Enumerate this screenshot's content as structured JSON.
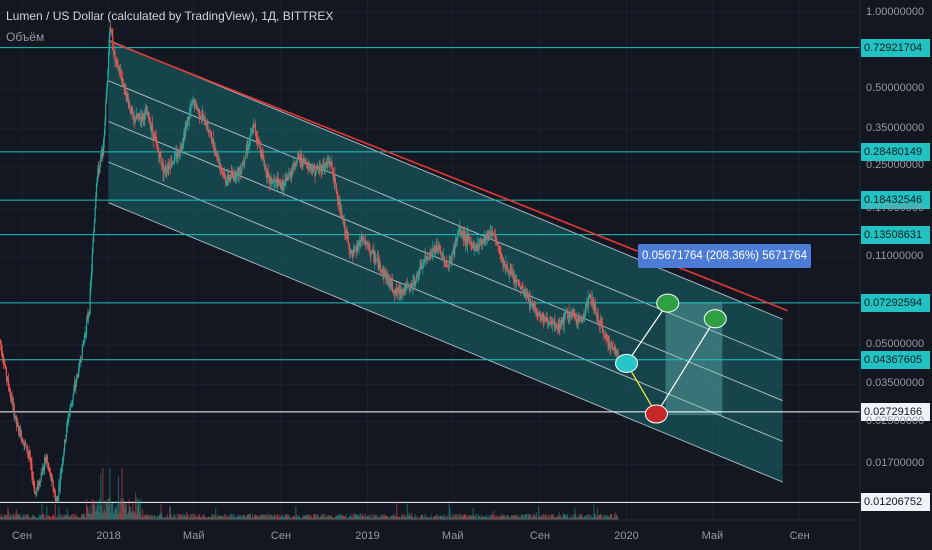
{
  "header": {
    "title": "Lumen / US Dollar (calculated by TradingView), 1Д, BITTREX",
    "volume_label": "Объём"
  },
  "measure_label": "0.05671764 (208.36%) 5671764",
  "colors": {
    "background": "#131722",
    "up": "#26a69a",
    "down": "#ef5350",
    "channel_fill": "#1e8f8f",
    "level_line": "#22c2c2",
    "white_line": "#ffffff",
    "red_trend": "#e53935",
    "measure_box": "#4c7cd6"
  },
  "chart_data": {
    "type": "candlestick",
    "title": "Lumen / US Dollar (calculated by TradingView), 1Д, BITTREX",
    "scale": "log",
    "ylim": [
      0.0103,
      1.12
    ],
    "xlim": [
      "2017-08-01",
      "2020-11-25"
    ],
    "y_ticks": [
      1.0,
      0.5,
      0.35,
      0.25,
      0.17,
      0.11,
      0.05,
      0.035,
      0.025,
      0.017
    ],
    "y_tick_labels": [
      "1.00000000",
      "0.50000000",
      "0.35000000",
      "0.25000000",
      "0.17000000",
      "0.11000000",
      "0.05000000",
      "0.03500000",
      "0.02500000",
      "0.01700000"
    ],
    "x_ticks": [
      {
        "label": "Сен",
        "date": "2017-09-01"
      },
      {
        "label": "2018",
        "date": "2018-01-01"
      },
      {
        "label": "Май",
        "date": "2018-05-01"
      },
      {
        "label": "Сен",
        "date": "2018-09-01"
      },
      {
        "label": "2019",
        "date": "2019-01-01"
      },
      {
        "label": "Май",
        "date": "2019-05-01"
      },
      {
        "label": "Сен",
        "date": "2019-09-01"
      },
      {
        "label": "2020",
        "date": "2020-01-01"
      },
      {
        "label": "Май",
        "date": "2020-05-01"
      },
      {
        "label": "Сен",
        "date": "2020-09-01"
      }
    ],
    "levels": [
      {
        "value": 0.72921704,
        "label": "0.72921704",
        "color": "cyan"
      },
      {
        "value": 0.28480149,
        "label": "0.28480149",
        "color": "cyan"
      },
      {
        "value": 0.18432546,
        "label": "0.18432546",
        "color": "cyan"
      },
      {
        "value": 0.13508631,
        "label": "0.13508631",
        "color": "cyan"
      },
      {
        "value": 0.07292594,
        "label": "0.07292594",
        "color": "cyan"
      },
      {
        "value": 0.04367605,
        "label": "0.04367605",
        "color": "cyan"
      },
      {
        "value": 0.02729166,
        "label": "0.02729166",
        "color": "white"
      },
      {
        "value": 0.01206752,
        "label": "0.01206752",
        "color": "white"
      }
    ],
    "price_path": [
      [
        "2017-08-01",
        0.052
      ],
      [
        "2017-08-10",
        0.038
      ],
      [
        "2017-08-25",
        0.024
      ],
      [
        "2017-09-10",
        0.019
      ],
      [
        "2017-09-20",
        0.013
      ],
      [
        "2017-10-05",
        0.018
      ],
      [
        "2017-10-20",
        0.012
      ],
      [
        "2017-11-05",
        0.026
      ],
      [
        "2017-11-20",
        0.04
      ],
      [
        "2017-12-05",
        0.07
      ],
      [
        "2017-12-15",
        0.22
      ],
      [
        "2017-12-25",
        0.3
      ],
      [
        "2018-01-03",
        0.9
      ],
      [
        "2018-01-10",
        0.65
      ],
      [
        "2018-01-20",
        0.55
      ],
      [
        "2018-02-05",
        0.38
      ],
      [
        "2018-02-25",
        0.4
      ],
      [
        "2018-03-20",
        0.24
      ],
      [
        "2018-04-10",
        0.28
      ],
      [
        "2018-04-30",
        0.45
      ],
      [
        "2018-05-20",
        0.36
      ],
      [
        "2018-06-15",
        0.22
      ],
      [
        "2018-07-05",
        0.24
      ],
      [
        "2018-07-25",
        0.36
      ],
      [
        "2018-08-15",
        0.22
      ],
      [
        "2018-09-05",
        0.21
      ],
      [
        "2018-09-25",
        0.27
      ],
      [
        "2018-10-20",
        0.24
      ],
      [
        "2018-11-10",
        0.26
      ],
      [
        "2018-11-25",
        0.16
      ],
      [
        "2018-12-10",
        0.11
      ],
      [
        "2018-12-25",
        0.13
      ],
      [
        "2019-01-20",
        0.1
      ],
      [
        "2019-02-10",
        0.08
      ],
      [
        "2019-03-05",
        0.085
      ],
      [
        "2019-03-25",
        0.11
      ],
      [
        "2019-04-10",
        0.12
      ],
      [
        "2019-04-25",
        0.1
      ],
      [
        "2019-05-10",
        0.14
      ],
      [
        "2019-06-01",
        0.12
      ],
      [
        "2019-06-25",
        0.14
      ],
      [
        "2019-07-15",
        0.1
      ],
      [
        "2019-08-10",
        0.08
      ],
      [
        "2019-09-01",
        0.065
      ],
      [
        "2019-09-25",
        0.058
      ],
      [
        "2019-10-10",
        0.066
      ],
      [
        "2019-10-30",
        0.062
      ],
      [
        "2019-11-10",
        0.078
      ],
      [
        "2019-11-30",
        0.055
      ],
      [
        "2019-12-20",
        0.045
      ]
    ],
    "channel": {
      "start": {
        "date": "2018-01-01",
        "upper": 0.78,
        "lower": 0.18
      },
      "end": {
        "date": "2020-08-08",
        "upper": 0.063,
        "lower": 0.0145
      },
      "inner_lines": 3
    },
    "red_trendline": {
      "from": {
        "date": "2018-01-03",
        "value": 0.77
      },
      "to": {
        "date": "2020-08-15",
        "value": 0.068
      }
    },
    "projection_boxes": [
      {
        "from": "2020-02-25",
        "to": "2020-04-25",
        "top": 0.0735,
        "bottom": 0.0265
      },
      {
        "from": "2020-04-25",
        "to": "2020-05-15",
        "top": 0.0735,
        "bottom": 0.0265
      }
    ],
    "markers": [
      {
        "date": "2020-01-01",
        "value": 0.0423,
        "color": "cyan"
      },
      {
        "date": "2020-02-12",
        "value": 0.0268,
        "color": "red"
      },
      {
        "date": "2020-02-28",
        "value": 0.0728,
        "color": "green"
      },
      {
        "date": "2020-05-05",
        "value": 0.0632,
        "color": "green"
      }
    ],
    "arrows": [
      {
        "from": 0,
        "to": 1,
        "color": "yellow"
      },
      {
        "from": 0,
        "to": 2,
        "color": "white"
      },
      {
        "from": 1,
        "to": 3,
        "color": "white"
      }
    ]
  }
}
